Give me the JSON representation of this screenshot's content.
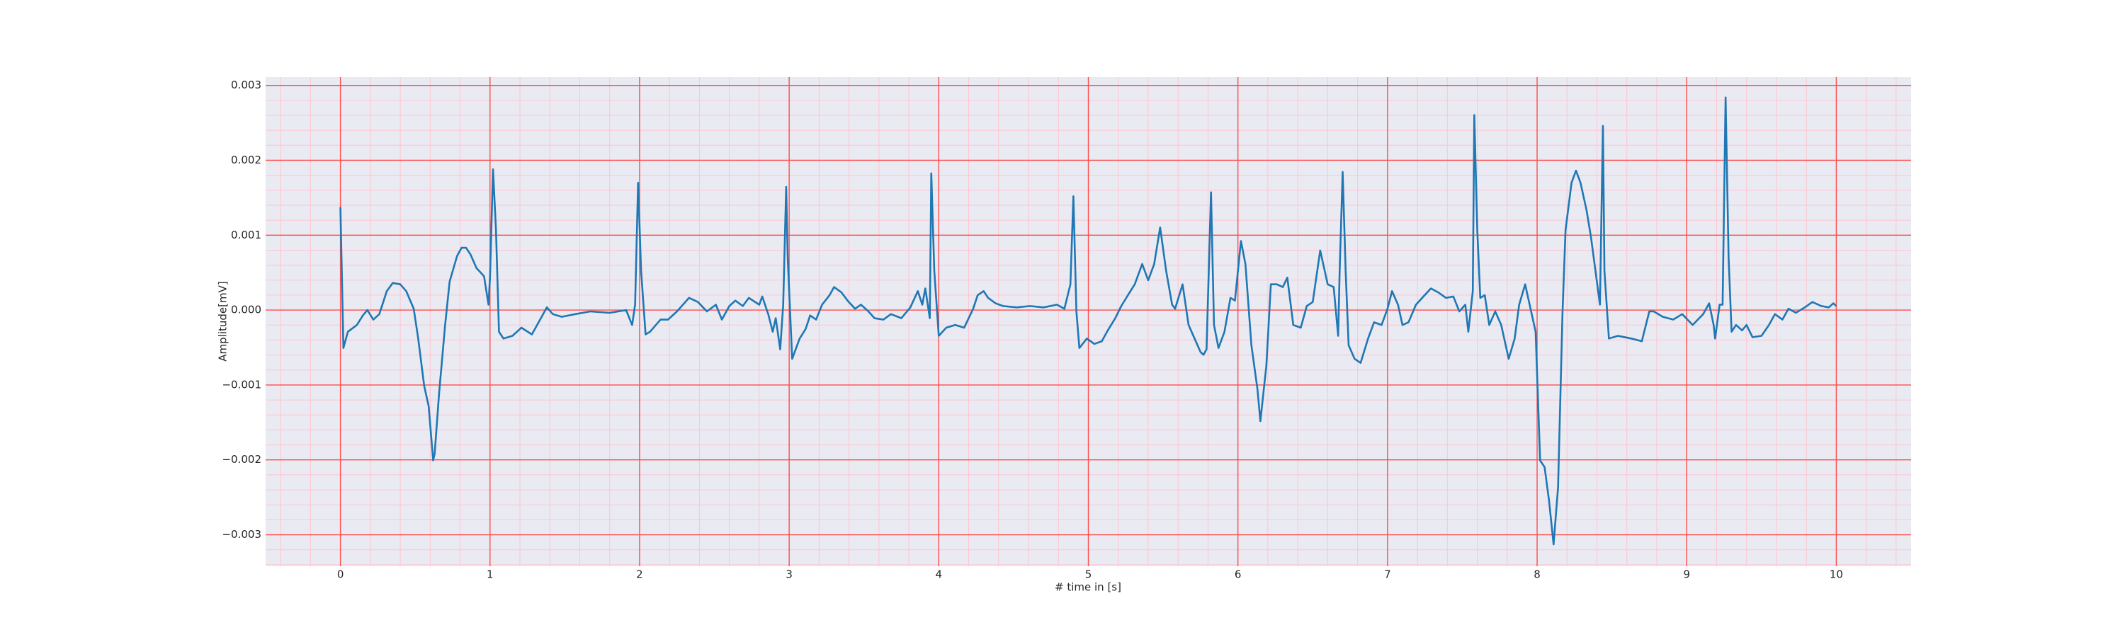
{
  "chart_data": {
    "type": "line",
    "xlabel": "# time in [s]",
    "ylabel": "Amplitude[mV]",
    "color": "#1f77b4",
    "background": "#eaeaf2",
    "grid": true,
    "grid_color": "#ff4d4d",
    "minor_grid": true,
    "minor_grid_color": "#ffc4cf",
    "xlim": [
      -0.5,
      10.5
    ],
    "ylim": [
      -0.00342,
      0.00311
    ],
    "xticks": [
      0,
      1,
      2,
      3,
      4,
      5,
      6,
      7,
      8,
      9,
      10
    ],
    "yticks": [
      {
        "value": -0.003,
        "label": "−0.003"
      },
      {
        "value": -0.002,
        "label": "−0.002"
      },
      {
        "value": -0.001,
        "label": "−0.001"
      },
      {
        "value": 0,
        "label": "0.000"
      },
      0.001,
      0.002,
      0.003
    ],
    "x": [
      0,
      0.02,
      0.05,
      0.11,
      0.15,
      0.18,
      0.22,
      0.26,
      0.31,
      0.35,
      0.4,
      0.44,
      0.49,
      0.52,
      0.56,
      0.59,
      0.62,
      0.63,
      0.66,
      0.7,
      0.73,
      0.78,
      0.81,
      0.84,
      0.87,
      0.91,
      0.96,
      0.99,
      1.0,
      1.02,
      1.04,
      1.06,
      1.09,
      1.15,
      1.21,
      1.28,
      1.33,
      1.38,
      1.42,
      1.48,
      1.57,
      1.67,
      1.8,
      1.91,
      1.95,
      1.97,
      1.99,
      2.01,
      2.04,
      2.07,
      2.14,
      2.19,
      2.25,
      2.33,
      2.39,
      2.45,
      2.51,
      2.55,
      2.6,
      2.64,
      2.69,
      2.73,
      2.8,
      2.82,
      2.86,
      2.89,
      2.91,
      2.94,
      2.96,
      2.98,
      2.99,
      3.02,
      3.07,
      3.11,
      3.14,
      3.18,
      3.22,
      3.27,
      3.3,
      3.35,
      3.39,
      3.44,
      3.48,
      3.53,
      3.57,
      3.63,
      3.68,
      3.75,
      3.81,
      3.86,
      3.89,
      3.91,
      3.94,
      3.95,
      3.97,
      4.0,
      4.05,
      4.11,
      4.17,
      4.23,
      4.26,
      4.3,
      4.33,
      4.38,
      4.43,
      4.52,
      4.61,
      4.7,
      4.79,
      4.84,
      4.88,
      4.9,
      4.92,
      4.94,
      4.99,
      5.04,
      5.09,
      5.13,
      5.18,
      5.22,
      5.27,
      5.31,
      5.36,
      5.4,
      5.44,
      5.48,
      5.52,
      5.56,
      5.58,
      5.63,
      5.67,
      5.71,
      5.75,
      5.77,
      5.79,
      5.82,
      5.84,
      5.87,
      5.91,
      5.95,
      5.98,
      6.02,
      6.05,
      6.09,
      6.13,
      6.15,
      6.19,
      6.22,
      6.26,
      6.3,
      6.33,
      6.37,
      6.42,
      6.46,
      6.5,
      6.55,
      6.6,
      6.64,
      6.67,
      6.68,
      6.7,
      6.72,
      6.74,
      6.78,
      6.82,
      6.87,
      6.91,
      6.96,
      7.0,
      7.03,
      7.07,
      7.1,
      7.14,
      7.19,
      7.24,
      7.29,
      7.34,
      7.39,
      7.44,
      7.48,
      7.52,
      7.54,
      7.57,
      7.58,
      7.6,
      7.62,
      7.65,
      7.68,
      7.72,
      7.76,
      7.81,
      7.85,
      7.88,
      7.92,
      7.96,
      7.99,
      8.02,
      8.05,
      8.08,
      8.11,
      8.14,
      8.17,
      8.19,
      8.23,
      8.26,
      8.29,
      8.33,
      8.36,
      8.39,
      8.42,
      8.44,
      8.45,
      8.48,
      8.54,
      8.63,
      8.7,
      8.75,
      8.78,
      8.84,
      8.91,
      8.97,
      9.04,
      9.11,
      9.15,
      9.18,
      9.19,
      9.22,
      9.24,
      9.26,
      9.28,
      9.3,
      9.33,
      9.37,
      9.4,
      9.44,
      9.5,
      9.55,
      9.59,
      9.64,
      9.68,
      9.73,
      9.79,
      9.84,
      9.9,
      9.95,
      9.98,
      10.0
    ],
    "values": [
      0.001374,
      -0.000506,
      -0.000289,
      -0.000199,
      -7.2e-05,
      0,
      -0.000127,
      -5.4e-05,
      0.000253,
      0.000362,
      0.000344,
      0.000253,
      1.8e-05,
      -0.00038,
      -0.001012,
      -0.001284,
      -0.002007,
      -0.001916,
      -0.001103,
      -0.000199,
      0.00038,
      0.000723,
      0.000832,
      0.000832,
      0.000741,
      0.00056,
      0.000452,
      7.2e-05,
      0.000434,
      0.00188,
      0.001067,
      -0.000289,
      -0.00038,
      -0.000344,
      -0.000235,
      -0.000325,
      -0.000145,
      3.6e-05,
      -5.4e-05,
      -9e-05,
      -5.4e-05,
      -1.8e-05,
      -3.6e-05,
      0,
      -0.000199,
      7.2e-05,
      0.0017,
      0.000524,
      -0.000325,
      -0.000289,
      -0.000127,
      -0.000127,
      -1.8e-05,
      0.000163,
      0.000108,
      -1.8e-05,
      7.2e-05,
      -0.000127,
      5.4e-05,
      0.000127,
      5.4e-05,
      0.000163,
      7.2e-05,
      0.000181,
      -5.4e-05,
      -0.000289,
      -0.000108,
      -0.000524,
      7.2e-05,
      0.001645,
      0.000705,
      -0.000651,
      -0.00038,
      -0.000253,
      -7.2e-05,
      -0.000127,
      7.2e-05,
      0.000199,
      0.000307,
      0.000235,
      0.000127,
      1.8e-05,
      7.2e-05,
      -1.8e-05,
      -0.000108,
      -0.000127,
      -5.4e-05,
      -0.000108,
      3.6e-05,
      0.000253,
      7.2e-05,
      0.000289,
      -0.000108,
      0.001826,
      0.000524,
      -0.000344,
      -0.000235,
      -0.000199,
      -0.000235,
      1.8e-05,
      0.000199,
      0.000253,
      0.000163,
      9e-05,
      5.4e-05,
      3.6e-05,
      5.4e-05,
      3.6e-05,
      7.2e-05,
      1.8e-05,
      0.000344,
      0.001519,
      -1.8e-05,
      -0.000506,
      -0.00038,
      -0.000452,
      -0.000416,
      -0.000271,
      -0.000108,
      5.4e-05,
      0.000217,
      0.000344,
      0.000615,
      0.000398,
      0.000615,
      0.001103,
      0.000524,
      7.2e-05,
      1.8e-05,
      0.000344,
      -0.000199,
      -0.00038,
      -0.00056,
      -0.000597,
      -0.000524,
      0.001573,
      -0.000199,
      -0.000506,
      -0.000289,
      0.000163,
      0.000127,
      0.000922,
      0.000615,
      -0.00047,
      -0.001049,
      -0.001483,
      -0.000741,
      0.000344,
      0.000344,
      0.000307,
      0.000434,
      -0.000199,
      -0.000235,
      5.4e-05,
      0.000108,
      0.000796,
      0.000344,
      0.000307,
      -0.000344,
      0.000524,
      0.001844,
      0.000524,
      -0.00047,
      -0.000651,
      -0.000705,
      -0.00038,
      -0.000163,
      -0.000199,
      1.8e-05,
      0.000253,
      7.2e-05,
      -0.000199,
      -0.000163,
      7.2e-05,
      0.000181,
      0.000289,
      0.000235,
      0.000163,
      0.000181,
      -1.8e-05,
      7.2e-05,
      -0.000289,
      0.000253,
      0.002604,
      0.001067,
      0.000163,
      0.000199,
      -0.000199,
      -1.8e-05,
      -0.000199,
      -0.000651,
      -0.00038,
      7.2e-05,
      0.000344,
      -1.8e-05,
      -0.000289,
      -0.002007,
      -0.002097,
      -0.002549,
      -0.003128,
      -0.002368,
      -1.8e-05,
      0.001067,
      0.0017,
      0.001862,
      0.0017,
      0.001338,
      0.000976,
      0.000524,
      7.2e-05,
      0.002459,
      0.000524,
      -0.00038,
      -0.000344,
      -0.00038,
      -0.000416,
      -1.8e-05,
      -1.8e-05,
      -9e-05,
      -0.000127,
      -5.4e-05,
      -0.000199,
      -5.4e-05,
      9e-05,
      -0.000199,
      -0.00038,
      7.2e-05,
      7.2e-05,
      0.002839,
      0.000705,
      -0.000289,
      -0.000199,
      -0.000271,
      -0.000199,
      -0.000362,
      -0.000344,
      -0.000199,
      -5.4e-05,
      -0.000127,
      1.8e-05,
      -3.6e-05,
      3.6e-05,
      0.000108,
      5.4e-05,
      3.6e-05,
      9e-05,
      5.4e-05
    ]
  }
}
